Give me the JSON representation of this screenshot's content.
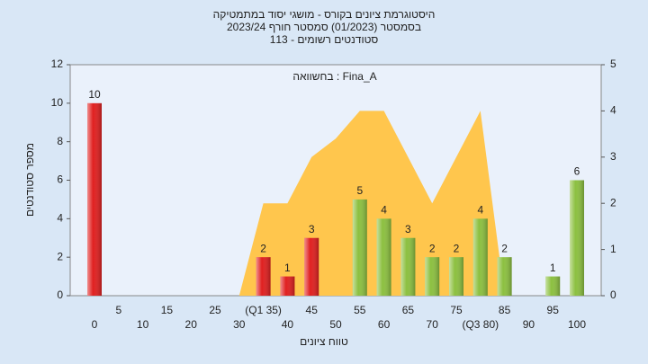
{
  "chart_data": {
    "type": "bar",
    "title_lines": [
      "היסטוגרמת ציונים בקורס - מושגי יסוד במתמטיקה",
      "בסמסטר  (01/2023)  סמסטר חורף  2023/24",
      "סטודנטים רשומים - 113"
    ],
    "annotation": "בחשוואה : Fina_A",
    "x_label": "טווח ציונים",
    "y_label": "מספר סטודנטים",
    "categories": [
      "0",
      "5",
      "10",
      "15",
      "20",
      "25",
      "30",
      "(Q1 35)",
      "40",
      "45",
      "50",
      "55",
      "60",
      "65",
      "70",
      "75",
      "(Q3 80)",
      "85",
      "90",
      "95",
      "100"
    ],
    "values": [
      10,
      0,
      0,
      0,
      0,
      0,
      0,
      2,
      1,
      3,
      0,
      5,
      4,
      3,
      2,
      2,
      4,
      2,
      0,
      1,
      6
    ],
    "bar_colors": [
      "#e02020",
      "#e02020",
      "#e02020",
      "#e02020",
      "#e02020",
      "#e02020",
      "#e02020",
      "#e02020",
      "#e02020",
      "#e02020",
      "#e02020",
      "#8cc040",
      "#8cc040",
      "#8cc040",
      "#8cc040",
      "#8cc040",
      "#8cc040",
      "#8cc040",
      "#8cc040",
      "#8cc040",
      "#8cc040"
    ],
    "ylim": [
      0,
      12
    ],
    "yticks": [
      0,
      2,
      4,
      6,
      8,
      10,
      12
    ],
    "y2lim": [
      0,
      5
    ],
    "y2ticks": [
      0,
      1,
      2,
      3,
      4,
      5
    ],
    "series": [
      {
        "name": "Fina_A",
        "color": "#ffc64d",
        "axis": "y2",
        "values": [
          null,
          null,
          null,
          null,
          null,
          null,
          0,
          2,
          2,
          3,
          3.4,
          4,
          4,
          3,
          2,
          3,
          4,
          0,
          null,
          null,
          null
        ]
      }
    ]
  }
}
